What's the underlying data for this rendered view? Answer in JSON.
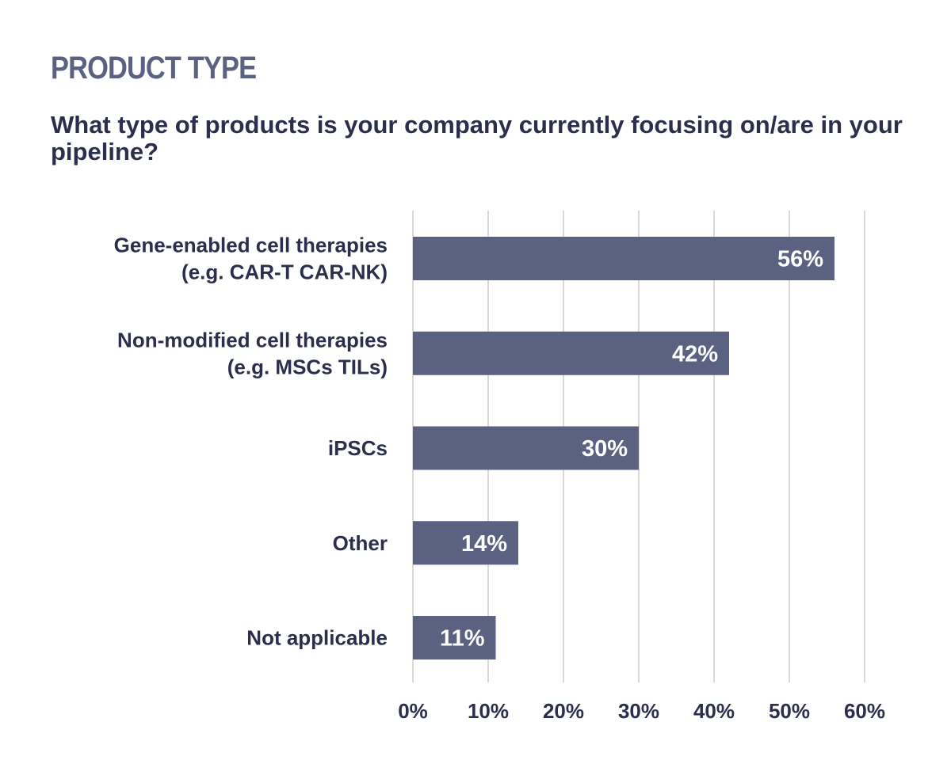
{
  "header": {
    "title": "PRODUCT TYPE",
    "question": "What type of products is your company currently focusing on/are in your pipeline?"
  },
  "colors": {
    "bar": "#5b6180",
    "grid": "#d9d9d9",
    "label_text": "#2b2f4d",
    "heading_text": "#5b6180",
    "value_text": "#ffffff"
  },
  "chart_data": {
    "type": "bar",
    "orientation": "horizontal",
    "categories": [
      [
        "Gene-enabled cell therapies",
        "(e.g. CAR-T  CAR-NK)"
      ],
      [
        "Non-modified cell therapies",
        "(e.g. MSCs  TILs)"
      ],
      [
        "iPSCs"
      ],
      [
        "Other"
      ],
      [
        "Not applicable"
      ]
    ],
    "values": [
      56,
      42,
      30,
      14,
      11
    ],
    "data_labels": [
      "56%",
      "42%",
      "30%",
      "14%",
      "11%"
    ],
    "x_ticks": [
      "0%",
      "10%",
      "20%",
      "30%",
      "40%",
      "50%",
      "60%"
    ],
    "xlim": [
      0,
      60
    ],
    "grid": "vertical",
    "legend": "none"
  }
}
